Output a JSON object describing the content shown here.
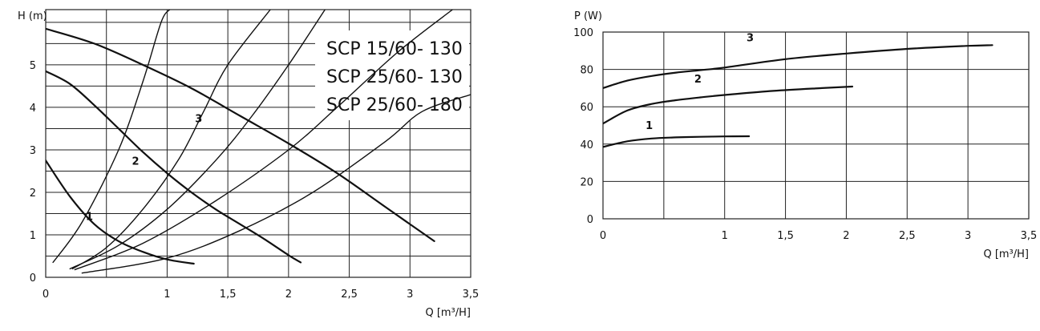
{
  "chart_data": [
    {
      "type": "line",
      "ylabel": "H (m)",
      "xlabel": "Q [m³/H]",
      "xlim": [
        0,
        3.5
      ],
      "ylim": [
        0,
        6.3
      ],
      "x_ticks": [
        {
          "v": 0,
          "label": "0"
        },
        {
          "v": 1,
          "label": "1"
        },
        {
          "v": 1.5,
          "label": "1,5"
        },
        {
          "v": 2,
          "label": "2"
        },
        {
          "v": 2.5,
          "label": "2,5"
        },
        {
          "v": 3,
          "label": "3"
        },
        {
          "v": 3.5,
          "label": "3,5"
        }
      ],
      "y_ticks": [
        {
          "v": 0,
          "label": "0"
        },
        {
          "v": 1,
          "label": "1"
        },
        {
          "v": 2,
          "label": "2"
        },
        {
          "v": 3,
          "label": "3"
        },
        {
          "v": 4,
          "label": "4"
        },
        {
          "v": 5,
          "label": "5"
        }
      ],
      "grid_x": [
        0.5,
        1,
        1.5,
        2,
        2.5,
        3
      ],
      "grid_y": [
        0.5,
        1,
        1.5,
        2,
        2.5,
        3,
        3.5,
        4,
        4.5,
        5,
        5.5,
        6
      ],
      "legend_lines": [
        "SCP 15/60- 130",
        "SCP 25/60- 130",
        "SCP 25/60- 180"
      ],
      "series": [
        {
          "label": "1",
          "x": [
            0,
            0.2,
            0.4,
            0.6,
            0.8,
            1.0,
            1.22
          ],
          "y": [
            2.75,
            1.9,
            1.25,
            0.85,
            0.6,
            0.42,
            0.32
          ],
          "label_at": [
            0.36,
            1.35
          ]
        },
        {
          "label": "2",
          "x": [
            0,
            0.2,
            0.4,
            0.6,
            0.8,
            1.0,
            1.2,
            1.4,
            1.6,
            1.8,
            2.0,
            2.1
          ],
          "y": [
            4.85,
            4.55,
            4.05,
            3.5,
            2.95,
            2.45,
            2.0,
            1.6,
            1.25,
            0.9,
            0.52,
            0.35
          ],
          "label_at": [
            0.74,
            2.65
          ]
        },
        {
          "label": "3",
          "x": [
            0,
            0.4,
            0.8,
            1.2,
            1.6,
            2.0,
            2.4,
            2.8,
            3.2
          ],
          "y": [
            5.85,
            5.5,
            5.0,
            4.45,
            3.8,
            3.15,
            2.45,
            1.65,
            0.85
          ],
          "label_at": [
            1.26,
            3.65
          ]
        }
      ],
      "system_curves": [
        {
          "x": [
            0.06,
            0.3,
            0.6,
            0.8,
            0.95,
            1.02
          ],
          "y": [
            0.35,
            1.3,
            3.0,
            4.6,
            6.0,
            6.3
          ]
        },
        {
          "x": [
            0.22,
            0.5,
            0.8,
            1.1,
            1.3,
            1.5,
            1.85
          ],
          "y": [
            0.2,
            0.7,
            1.6,
            2.8,
            3.9,
            5.0,
            6.3
          ]
        },
        {
          "x": [
            0.2,
            0.6,
            1.0,
            1.4,
            1.7,
            2.0,
            2.3
          ],
          "y": [
            0.2,
            0.75,
            1.6,
            2.75,
            3.8,
            5.0,
            6.3
          ]
        },
        {
          "x": [
            0.24,
            0.8,
            1.4,
            2.0,
            2.4,
            2.9,
            3.35
          ],
          "y": [
            0.18,
            0.8,
            1.8,
            3.0,
            4.0,
            5.3,
            6.3
          ]
        },
        {
          "x": [
            0.3,
            1.0,
            1.6,
            2.2,
            2.8,
            3.1,
            3.5
          ],
          "y": [
            0.1,
            0.45,
            1.1,
            2.0,
            3.2,
            3.9,
            4.3
          ]
        }
      ]
    },
    {
      "type": "line",
      "ylabel": "P (W)",
      "xlabel": "Q [m³/H]",
      "xlim": [
        0,
        3.5
      ],
      "ylim": [
        0,
        100
      ],
      "x_ticks": [
        {
          "v": 0,
          "label": "0"
        },
        {
          "v": 1,
          "label": "1"
        },
        {
          "v": 1.5,
          "label": "1,5"
        },
        {
          "v": 2,
          "label": "2"
        },
        {
          "v": 2.5,
          "label": "2,5"
        },
        {
          "v": 3,
          "label": "3"
        },
        {
          "v": 3.5,
          "label": "3,5"
        }
      ],
      "y_ticks": [
        {
          "v": 0,
          "label": "0"
        },
        {
          "v": 20,
          "label": "20"
        },
        {
          "v": 40,
          "label": "40"
        },
        {
          "v": 60,
          "label": "60"
        },
        {
          "v": 80,
          "label": "80"
        },
        {
          "v": 100,
          "label": "100"
        }
      ],
      "grid_x": [
        0.5,
        1,
        1.5,
        2,
        2.5,
        3
      ],
      "grid_y": [
        20,
        40,
        60,
        80
      ],
      "series": [
        {
          "label": "1",
          "x": [
            0,
            0.2,
            0.4,
            0.6,
            0.8,
            1.0,
            1.2
          ],
          "y": [
            38.5,
            41.5,
            43,
            43.6,
            43.9,
            44.1,
            44.2
          ],
          "label_at": [
            0.38,
            48
          ]
        },
        {
          "label": "2",
          "x": [
            0,
            0.2,
            0.4,
            0.6,
            0.8,
            1.0,
            1.4,
            1.8,
            2.05
          ],
          "y": [
            51,
            58,
            61.5,
            63.5,
            65,
            66.3,
            68.5,
            70,
            70.8
          ],
          "label_at": [
            0.78,
            73
          ]
        },
        {
          "label": "3",
          "x": [
            0,
            0.2,
            0.4,
            0.6,
            0.8,
            1.0,
            1.5,
            2.0,
            2.5,
            3.0,
            3.2
          ],
          "y": [
            70,
            74,
            76.5,
            78.3,
            79.6,
            81,
            85.5,
            88.5,
            91,
            92.6,
            93
          ],
          "label_at": [
            1.21,
            95
          ]
        }
      ]
    }
  ]
}
